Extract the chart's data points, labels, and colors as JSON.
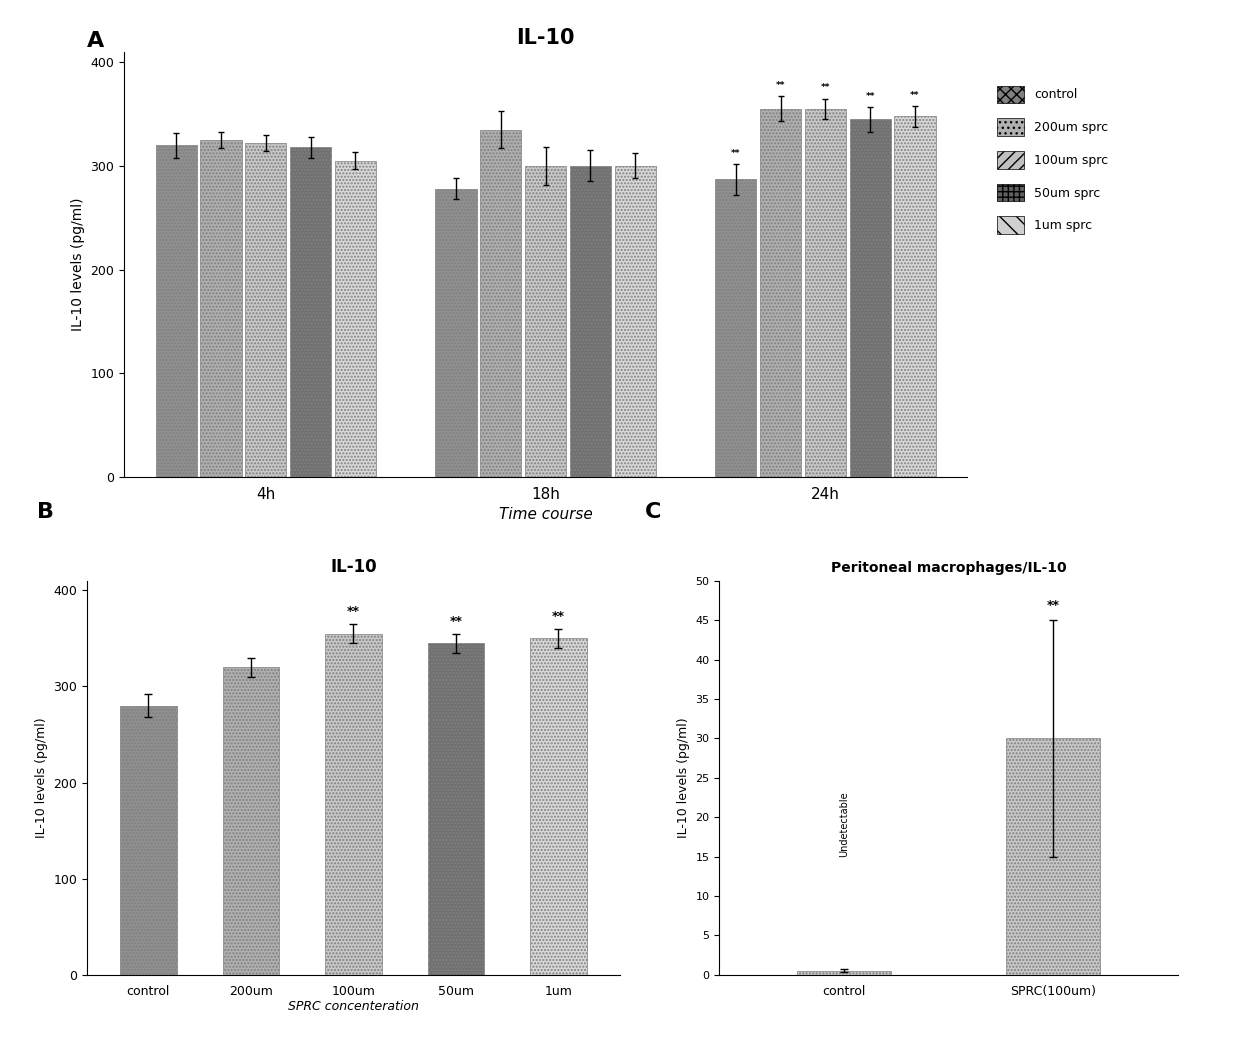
{
  "panel_A": {
    "title": "IL-10",
    "xlabel": "Time course",
    "ylabel": "IL-10 levels (pg/ml)",
    "time_points": [
      "4h",
      "18h",
      "24h"
    ],
    "groups": [
      "control",
      "200um sprc",
      "100um sprc",
      "50um sprc",
      "1um sprc"
    ],
    "values": [
      [
        320,
        325,
        322,
        318,
        305
      ],
      [
        278,
        335,
        300,
        300,
        300
      ],
      [
        287,
        355,
        355,
        345,
        348
      ]
    ],
    "errors": [
      [
        12,
        8,
        8,
        10,
        8
      ],
      [
        10,
        18,
        18,
        15,
        12
      ],
      [
        15,
        12,
        10,
        12,
        10
      ]
    ],
    "sig_groups": [
      0,
      1,
      2,
      3,
      4
    ],
    "ylim": [
      0,
      410
    ],
    "yticks": [
      0,
      100,
      200,
      300,
      400
    ]
  },
  "panel_B": {
    "title": "IL-10",
    "xlabel": "SPRC concenteration",
    "ylabel": "IL-10 levels (pg/ml)",
    "categories": [
      "control",
      "200um",
      "100um",
      "50um",
      "1um"
    ],
    "values": [
      280,
      320,
      355,
      345,
      350
    ],
    "errors": [
      12,
      10,
      10,
      10,
      10
    ],
    "sig": [
      "",
      "",
      "**",
      "**",
      "**"
    ],
    "ylim": [
      0,
      410
    ],
    "yticks": [
      0,
      100,
      200,
      300,
      400
    ]
  },
  "panel_C": {
    "title": "Peritoneal macrophages/IL-10",
    "ylabel": "IL-10 levels (pg/ml)",
    "categories": [
      "control",
      "SPRC(100um)"
    ],
    "values": [
      0.5,
      30
    ],
    "errors": [
      0.2,
      15
    ],
    "sig": [
      "",
      "**"
    ],
    "ylim": [
      0,
      50
    ],
    "yticks": [
      0,
      5,
      10,
      15,
      20,
      25,
      30,
      35,
      40,
      45,
      50
    ]
  },
  "colors": {
    "control": "#8c8c8c",
    "200um": "#b0b0b0",
    "100um": "#c8c8c8",
    "50um": "#787878",
    "1um": "#d8d8d8"
  },
  "legend_labels": [
    "control",
    "200um sprc",
    "100um sprc",
    "50um sprc",
    "1um sprc"
  ]
}
